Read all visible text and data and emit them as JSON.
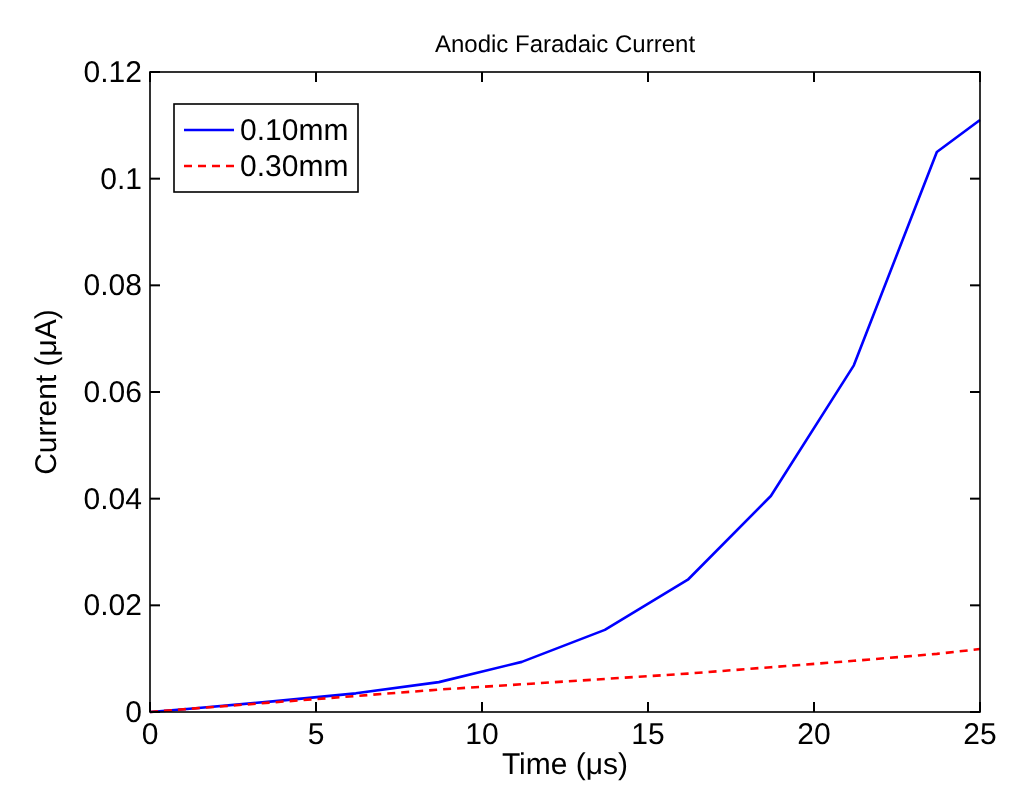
{
  "chart_data": {
    "type": "line",
    "title": "Anodic Faradaic Current",
    "xlabel": "Time (μs)",
    "ylabel": "Current (μA)",
    "xlim": [
      0,
      25
    ],
    "xticks": [
      0,
      5,
      10,
      15,
      20,
      25
    ],
    "ylim": [
      0,
      0.12
    ],
    "yticks": [
      0,
      0.02,
      0.04,
      0.06,
      0.08,
      0.1,
      0.12
    ],
    "grid": false,
    "legend": "top left",
    "marker": "none",
    "series": [
      {
        "name": "0.10mm",
        "color": "#0000ff",
        "line_style": "solid",
        "x": [
          0,
          1.2,
          3.7,
          6.2,
          8.7,
          11.2,
          13.7,
          16.2,
          18.7,
          21.2,
          23.7,
          25
        ],
        "values": [
          0,
          0.0006,
          0.002,
          0.0035,
          0.0056,
          0.0094,
          0.0154,
          0.0248,
          0.0405,
          0.065,
          0.105,
          0.111
        ]
      },
      {
        "name": "0.30mm",
        "color": "#ff0000",
        "line_style": "dashed",
        "x": [
          0,
          1.2,
          3.7,
          6.2,
          8.7,
          11.2,
          13.7,
          16.2,
          18.7,
          21.2,
          23.7,
          25
        ],
        "values": [
          0,
          0.0006,
          0.0018,
          0.003,
          0.0042,
          0.0052,
          0.0062,
          0.0072,
          0.0084,
          0.0096,
          0.0109,
          0.0118
        ]
      }
    ]
  }
}
